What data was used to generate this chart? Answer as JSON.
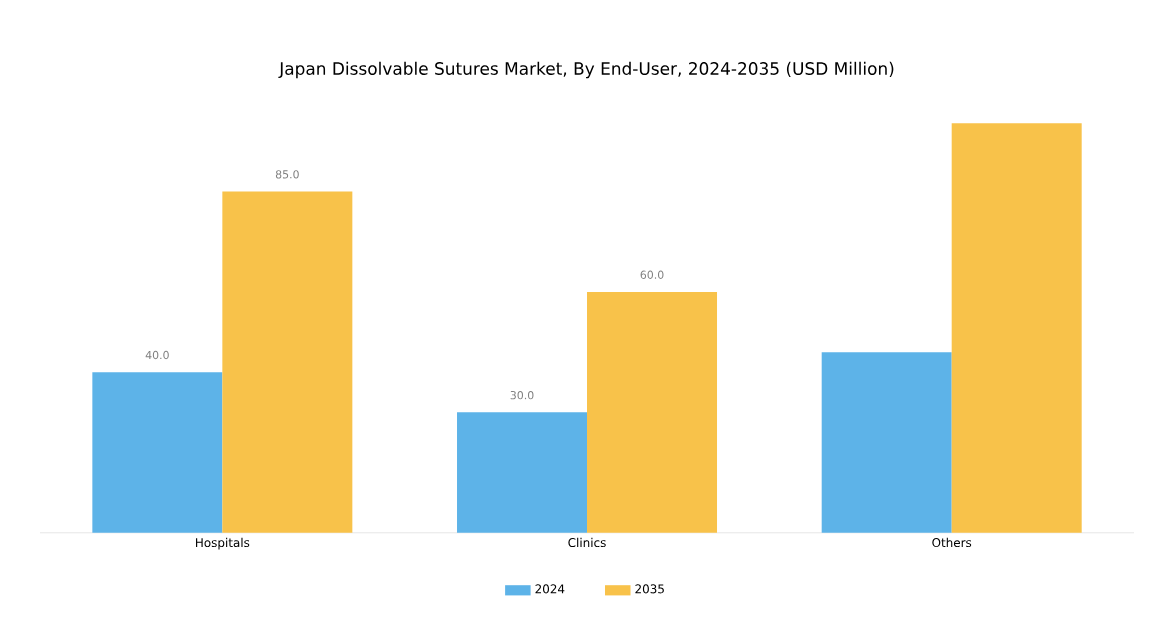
{
  "chart_data": {
    "type": "bar",
    "title": "Japan Dissolvable Sutures Market, By End-User, 2024-2035 (USD Million)",
    "categories": [
      "Hospitals",
      "Clinics",
      "Others"
    ],
    "series": [
      {
        "name": "2024",
        "color": "#5db3e8",
        "values": [
          40,
          30,
          45
        ],
        "value_labels": [
          "40.0",
          "30.0",
          null
        ]
      },
      {
        "name": "2035",
        "color": "#f8c24a",
        "values": [
          85,
          60,
          102
        ],
        "value_labels": [
          "85.0",
          "60.0",
          null
        ]
      }
    ],
    "legend": "bottom"
  }
}
